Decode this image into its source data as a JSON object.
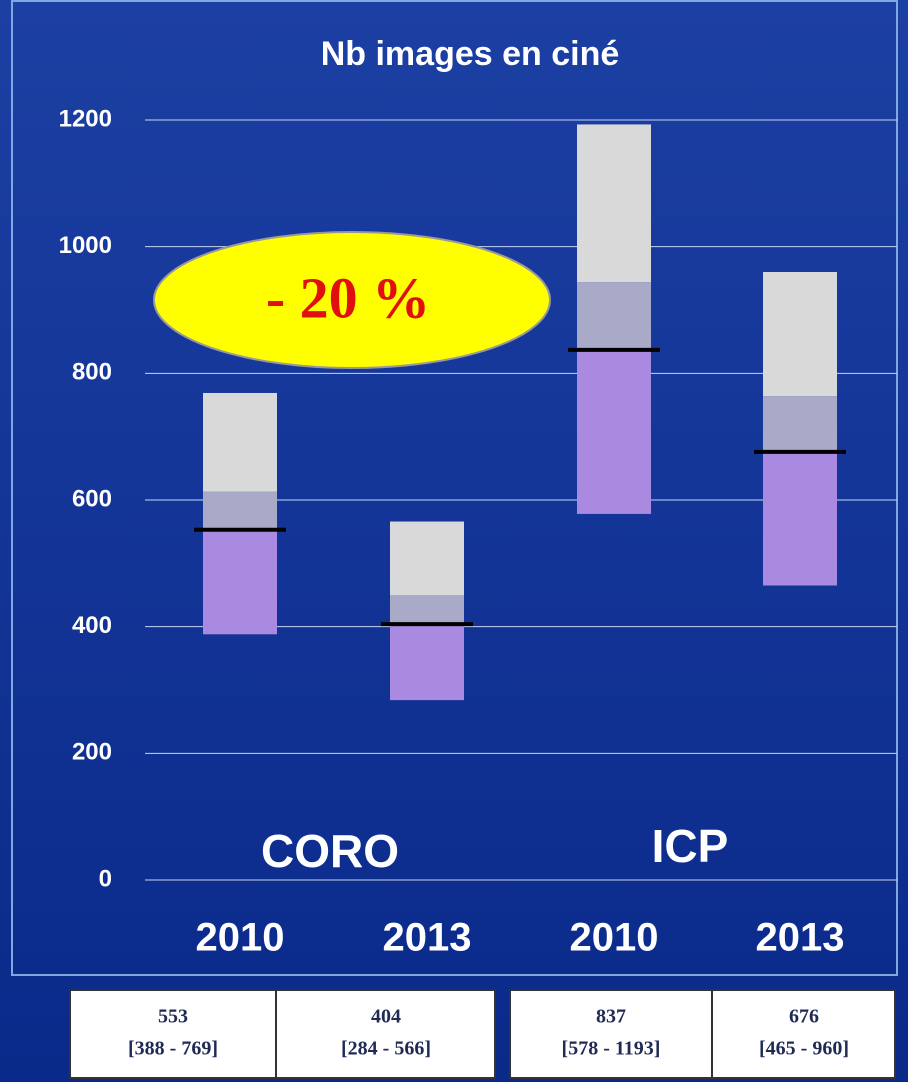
{
  "chart_data": {
    "type": "box",
    "title": "Nb images en ciné",
    "categories": [
      "2010",
      "2013",
      "2010",
      "2013"
    ],
    "groups": [
      "CORO",
      "ICP"
    ],
    "boxes": [
      {
        "min": 388,
        "median": 553,
        "q3": 613,
        "max": 769
      },
      {
        "min": 284,
        "median": 404,
        "q3": 450,
        "max": 566
      },
      {
        "min": 578,
        "median": 837,
        "q3": 944,
        "max": 1193
      },
      {
        "min": 465,
        "median": 676,
        "q3": 764,
        "max": 960
      }
    ],
    "colors": {
      "lower": "#a98ae0",
      "middle": "#a9aac8",
      "upper": "#d9d9d9",
      "median": "#000000"
    },
    "ylim": [
      0,
      1200
    ],
    "yticks": [
      0,
      200,
      400,
      600,
      800,
      1000,
      1200
    ],
    "grid": true,
    "annotation": "- 20 %",
    "table": [
      {
        "median": "553",
        "range": "[388 - 769]"
      },
      {
        "median": "404",
        "range": "[284 - 566]"
      },
      {
        "median": "837",
        "range": "[578 - 1193]"
      },
      {
        "median": "676",
        "range": "[465 - 960]"
      }
    ]
  }
}
